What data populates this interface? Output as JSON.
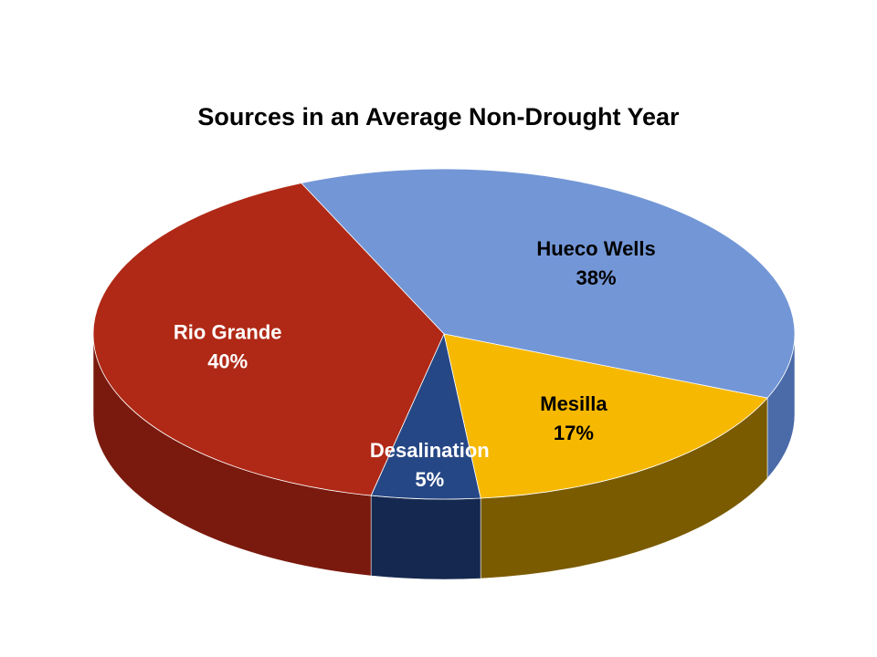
{
  "chart_data": {
    "type": "pie3d",
    "title": "Sources in an Average Non-Drought Year",
    "categories": [
      "Hueco Wells",
      "Mesilla",
      "Desalination",
      "Rio Grande"
    ],
    "values": [
      38,
      17,
      5,
      40
    ],
    "value_labels": [
      "38%",
      "17%",
      "5%",
      "40%"
    ],
    "colors": [
      "#7396d6",
      "#f6b800",
      "#264785",
      "#b02916"
    ],
    "side_colors": [
      "#4a6aa8",
      "#7a5b00",
      "#15284f",
      "#7a1a0e"
    ],
    "label_colors": [
      "#000000",
      "#000000",
      "#ffffff",
      "#ffffff"
    ]
  }
}
